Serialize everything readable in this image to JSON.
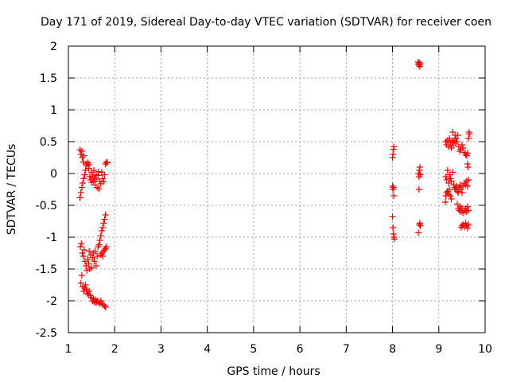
{
  "chart_data": {
    "type": "scatter",
    "title": "Day 171 of 2019, Sidereal Day-to-day VTEC variation (SDTVAR) for receiver coen",
    "xlabel": "GPS time / hours",
    "ylabel": "SDTVAR / TECUs",
    "xlim": [
      1,
      10
    ],
    "ylim": [
      -2.5,
      2
    ],
    "xticks": [
      "1",
      "2",
      "3",
      "4",
      "5",
      "6",
      "7",
      "8",
      "9",
      "10"
    ],
    "yticks": [
      "-2.5",
      "-2",
      "-1.5",
      "-1",
      "-0.5",
      "0",
      "0.5",
      "1",
      "1.5",
      "2"
    ],
    "grid": true,
    "marker": "+",
    "colors": {
      "points": "#ff0000",
      "grid": "#a0a0a0",
      "axes": "#000000"
    },
    "series": [
      {
        "name": "SDTVAR",
        "points": [
          [
            1.25,
            0.37
          ],
          [
            1.27,
            0.3
          ],
          [
            1.29,
            0.35
          ],
          [
            1.3,
            0.25
          ],
          [
            1.32,
            0.18
          ],
          [
            1.33,
            0.28
          ],
          [
            1.25,
            -0.38
          ],
          [
            1.27,
            -0.3
          ],
          [
            1.29,
            -0.22
          ],
          [
            1.31,
            -0.15
          ],
          [
            1.33,
            -0.08
          ],
          [
            1.35,
            -0.02
          ],
          [
            1.37,
            0.05
          ],
          [
            1.38,
            0.15
          ],
          [
            1.4,
            0.12
          ],
          [
            1.42,
            0.17
          ],
          [
            1.44,
            0.08
          ],
          [
            1.45,
            0.14
          ],
          [
            1.46,
            -0.05
          ],
          [
            1.48,
            -0.1
          ],
          [
            1.5,
            -0.14
          ],
          [
            1.52,
            -0.04
          ],
          [
            1.54,
            -0.12
          ],
          [
            1.56,
            -0.07
          ],
          [
            1.58,
            -0.18
          ],
          [
            1.6,
            -0.09
          ],
          [
            1.62,
            -0.22
          ],
          [
            1.64,
            -0.03
          ],
          [
            1.65,
            0.03
          ],
          [
            1.66,
            -0.24
          ],
          [
            1.68,
            -0.12
          ],
          [
            1.7,
            -0.16
          ],
          [
            1.72,
            0.02
          ],
          [
            1.74,
            -0.08
          ],
          [
            1.76,
            -0.13
          ],
          [
            1.78,
            -0.02
          ],
          [
            1.8,
            0.15
          ],
          [
            1.82,
            0.18
          ],
          [
            1.84,
            0.17
          ],
          [
            1.5,
            0.02
          ],
          [
            1.55,
            0.05
          ],
          [
            1.6,
            -0.02
          ],
          [
            1.26,
            -1.15
          ],
          [
            1.28,
            -1.1
          ],
          [
            1.3,
            -1.25
          ],
          [
            1.32,
            -1.3
          ],
          [
            1.34,
            -1.2
          ],
          [
            1.36,
            -1.38
          ],
          [
            1.38,
            -1.45
          ],
          [
            1.4,
            -1.52
          ],
          [
            1.42,
            -1.35
          ],
          [
            1.44,
            -1.42
          ],
          [
            1.46,
            -1.5
          ],
          [
            1.48,
            -1.28
          ],
          [
            1.5,
            -1.48
          ],
          [
            1.52,
            -1.32
          ],
          [
            1.54,
            -1.25
          ],
          [
            1.56,
            -1.38
          ],
          [
            1.58,
            -1.22
          ],
          [
            1.6,
            -1.45
          ],
          [
            1.62,
            -1.3
          ],
          [
            1.64,
            -1.15
          ],
          [
            1.66,
            -1.12
          ],
          [
            1.68,
            -1.05
          ],
          [
            1.7,
            -0.98
          ],
          [
            1.72,
            -0.9
          ],
          [
            1.74,
            -0.85
          ],
          [
            1.76,
            -0.78
          ],
          [
            1.78,
            -0.72
          ],
          [
            1.8,
            -0.65
          ],
          [
            1.7,
            -1.28
          ],
          [
            1.72,
            -1.25
          ],
          [
            1.74,
            -1.3
          ],
          [
            1.76,
            -1.22
          ],
          [
            1.78,
            -1.2
          ],
          [
            1.8,
            -1.18
          ],
          [
            1.82,
            -1.15
          ],
          [
            1.45,
            -1.22
          ],
          [
            1.27,
            -1.72
          ],
          [
            1.29,
            -1.6
          ],
          [
            1.31,
            -1.78
          ],
          [
            1.33,
            -1.85
          ],
          [
            1.35,
            -1.8
          ],
          [
            1.37,
            -1.75
          ],
          [
            1.39,
            -1.82
          ],
          [
            1.41,
            -1.88
          ],
          [
            1.43,
            -1.9
          ],
          [
            1.45,
            -1.85
          ],
          [
            1.47,
            -1.92
          ],
          [
            1.5,
            -1.95
          ],
          [
            1.52,
            -2.0
          ],
          [
            1.54,
            -1.97
          ],
          [
            1.56,
            -2.02
          ],
          [
            1.58,
            -1.98
          ],
          [
            1.6,
            -2.03
          ],
          [
            1.62,
            -2.0
          ],
          [
            1.65,
            -2.02
          ],
          [
            1.68,
            -2.05
          ],
          [
            1.7,
            -2.0
          ],
          [
            1.72,
            -2.04
          ],
          [
            1.75,
            -2.06
          ],
          [
            1.78,
            -2.08
          ],
          [
            1.8,
            -2.1
          ],
          [
            8.0,
            0.25
          ],
          [
            8.01,
            0.3
          ],
          [
            8.02,
            0.38
          ],
          [
            8.03,
            0.42
          ],
          [
            8.0,
            -0.2
          ],
          [
            8.01,
            -0.25
          ],
          [
            8.02,
            -0.22
          ],
          [
            8.03,
            -0.35
          ],
          [
            8.0,
            -0.68
          ],
          [
            8.01,
            -0.85
          ],
          [
            8.02,
            -0.95
          ],
          [
            8.03,
            -1.0
          ],
          [
            8.04,
            -1.03
          ],
          [
            8.55,
            1.75
          ],
          [
            8.56,
            1.72
          ],
          [
            8.57,
            1.7
          ],
          [
            8.58,
            1.74
          ],
          [
            8.59,
            1.68
          ],
          [
            8.6,
            1.72
          ],
          [
            8.56,
            0.0
          ],
          [
            8.57,
            -0.05
          ],
          [
            8.58,
            0.05
          ],
          [
            8.59,
            0.1
          ],
          [
            8.6,
            -0.02
          ],
          [
            8.57,
            -0.25
          ],
          [
            8.58,
            -0.8
          ],
          [
            8.59,
            -0.78
          ],
          [
            8.6,
            -0.82
          ],
          [
            8.56,
            -0.93
          ],
          [
            9.15,
            0.5
          ],
          [
            9.17,
            0.45
          ],
          [
            9.19,
            0.52
          ],
          [
            9.21,
            0.42
          ],
          [
            9.23,
            0.55
          ],
          [
            9.25,
            0.48
          ],
          [
            9.27,
            0.4
          ],
          [
            9.29,
            0.5
          ],
          [
            9.31,
            0.44
          ],
          [
            9.33,
            0.52
          ],
          [
            9.35,
            0.48
          ],
          [
            9.37,
            0.55
          ],
          [
            9.39,
            0.5
          ],
          [
            9.41,
            0.6
          ],
          [
            9.43,
            0.42
          ],
          [
            9.45,
            0.35
          ],
          [
            9.47,
            0.38
          ],
          [
            9.5,
            0.45
          ],
          [
            9.52,
            0.4
          ],
          [
            9.55,
            0.33
          ],
          [
            9.58,
            0.3
          ],
          [
            9.6,
            0.28
          ],
          [
            9.62,
            0.32
          ],
          [
            9.64,
            0.55
          ],
          [
            9.65,
            0.65
          ],
          [
            9.66,
            0.62
          ],
          [
            9.63,
            0.1
          ],
          [
            9.62,
            0.15
          ],
          [
            9.3,
            0.65
          ],
          [
            9.35,
            0.6
          ],
          [
            9.15,
            -0.05
          ],
          [
            9.17,
            -0.1
          ],
          [
            9.19,
            0.05
          ],
          [
            9.21,
            -0.15
          ],
          [
            9.23,
            -0.02
          ],
          [
            9.25,
            -0.08
          ],
          [
            9.27,
            -0.12
          ],
          [
            9.3,
            0.02
          ],
          [
            9.32,
            -0.18
          ],
          [
            9.34,
            -0.22
          ],
          [
            9.36,
            -0.25
          ],
          [
            9.38,
            -0.2
          ],
          [
            9.4,
            -0.28
          ],
          [
            9.42,
            -0.3
          ],
          [
            9.44,
            -0.22
          ],
          [
            9.46,
            -0.18
          ],
          [
            9.48,
            -0.25
          ],
          [
            9.5,
            -0.3
          ],
          [
            9.52,
            -0.2
          ],
          [
            9.55,
            -0.15
          ],
          [
            9.58,
            -0.18
          ],
          [
            9.6,
            -0.12
          ],
          [
            9.62,
            -0.2
          ],
          [
            9.64,
            -0.1
          ],
          [
            9.15,
            -0.35
          ],
          [
            9.17,
            -0.3
          ],
          [
            9.19,
            -0.28
          ],
          [
            9.21,
            -0.33
          ],
          [
            9.23,
            -0.25
          ],
          [
            9.25,
            -0.35
          ],
          [
            9.14,
            -0.45
          ],
          [
            9.27,
            -0.4
          ],
          [
            9.4,
            -0.48
          ],
          [
            9.42,
            -0.55
          ],
          [
            9.44,
            -0.58
          ],
          [
            9.46,
            -0.52
          ],
          [
            9.48,
            -0.6
          ],
          [
            9.5,
            -0.55
          ],
          [
            9.52,
            -0.62
          ],
          [
            9.55,
            -0.58
          ],
          [
            9.58,
            -0.55
          ],
          [
            9.6,
            -0.6
          ],
          [
            9.62,
            -0.52
          ],
          [
            9.64,
            -0.58
          ],
          [
            9.48,
            -0.85
          ],
          [
            9.5,
            -0.82
          ],
          [
            9.52,
            -0.8
          ],
          [
            9.55,
            -0.84
          ],
          [
            9.58,
            -0.78
          ],
          [
            9.6,
            -0.82
          ],
          [
            9.62,
            -0.86
          ],
          [
            9.64,
            -0.8
          ]
        ]
      }
    ]
  }
}
